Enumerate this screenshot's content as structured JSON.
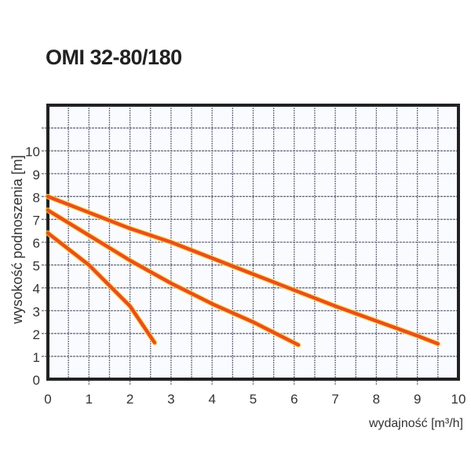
{
  "chart_data": {
    "type": "line",
    "title": "OMI 32-80/180",
    "xlabel": "wydajność [m³/h]",
    "ylabel": "wysokość podnoszenia [m]",
    "xlim": [
      0,
      10
    ],
    "ylim": [
      0,
      12
    ],
    "xticks": [
      "0",
      "1",
      "2",
      "3",
      "4",
      "5",
      "6",
      "7",
      "8",
      "9",
      "10"
    ],
    "yticks": [
      "0",
      "1",
      "2",
      "3",
      "4",
      "5",
      "6",
      "7",
      "8",
      "9",
      "10"
    ],
    "grid": true,
    "line_color": "#e8501e",
    "series": [
      {
        "x": [
          0,
          1,
          2,
          2.6
        ],
        "y": [
          6.4,
          5.0,
          3.2,
          1.6
        ]
      },
      {
        "x": [
          0,
          1,
          2,
          3,
          4,
          5,
          6.1
        ],
        "y": [
          7.4,
          6.3,
          5.2,
          4.2,
          3.3,
          2.5,
          1.5
        ]
      },
      {
        "x": [
          0,
          1,
          2,
          3,
          4,
          5,
          6,
          7,
          8,
          9,
          9.5
        ],
        "y": [
          8.0,
          7.3,
          6.6,
          6.0,
          5.3,
          4.6,
          3.9,
          3.2,
          2.55,
          1.9,
          1.55
        ]
      }
    ]
  }
}
